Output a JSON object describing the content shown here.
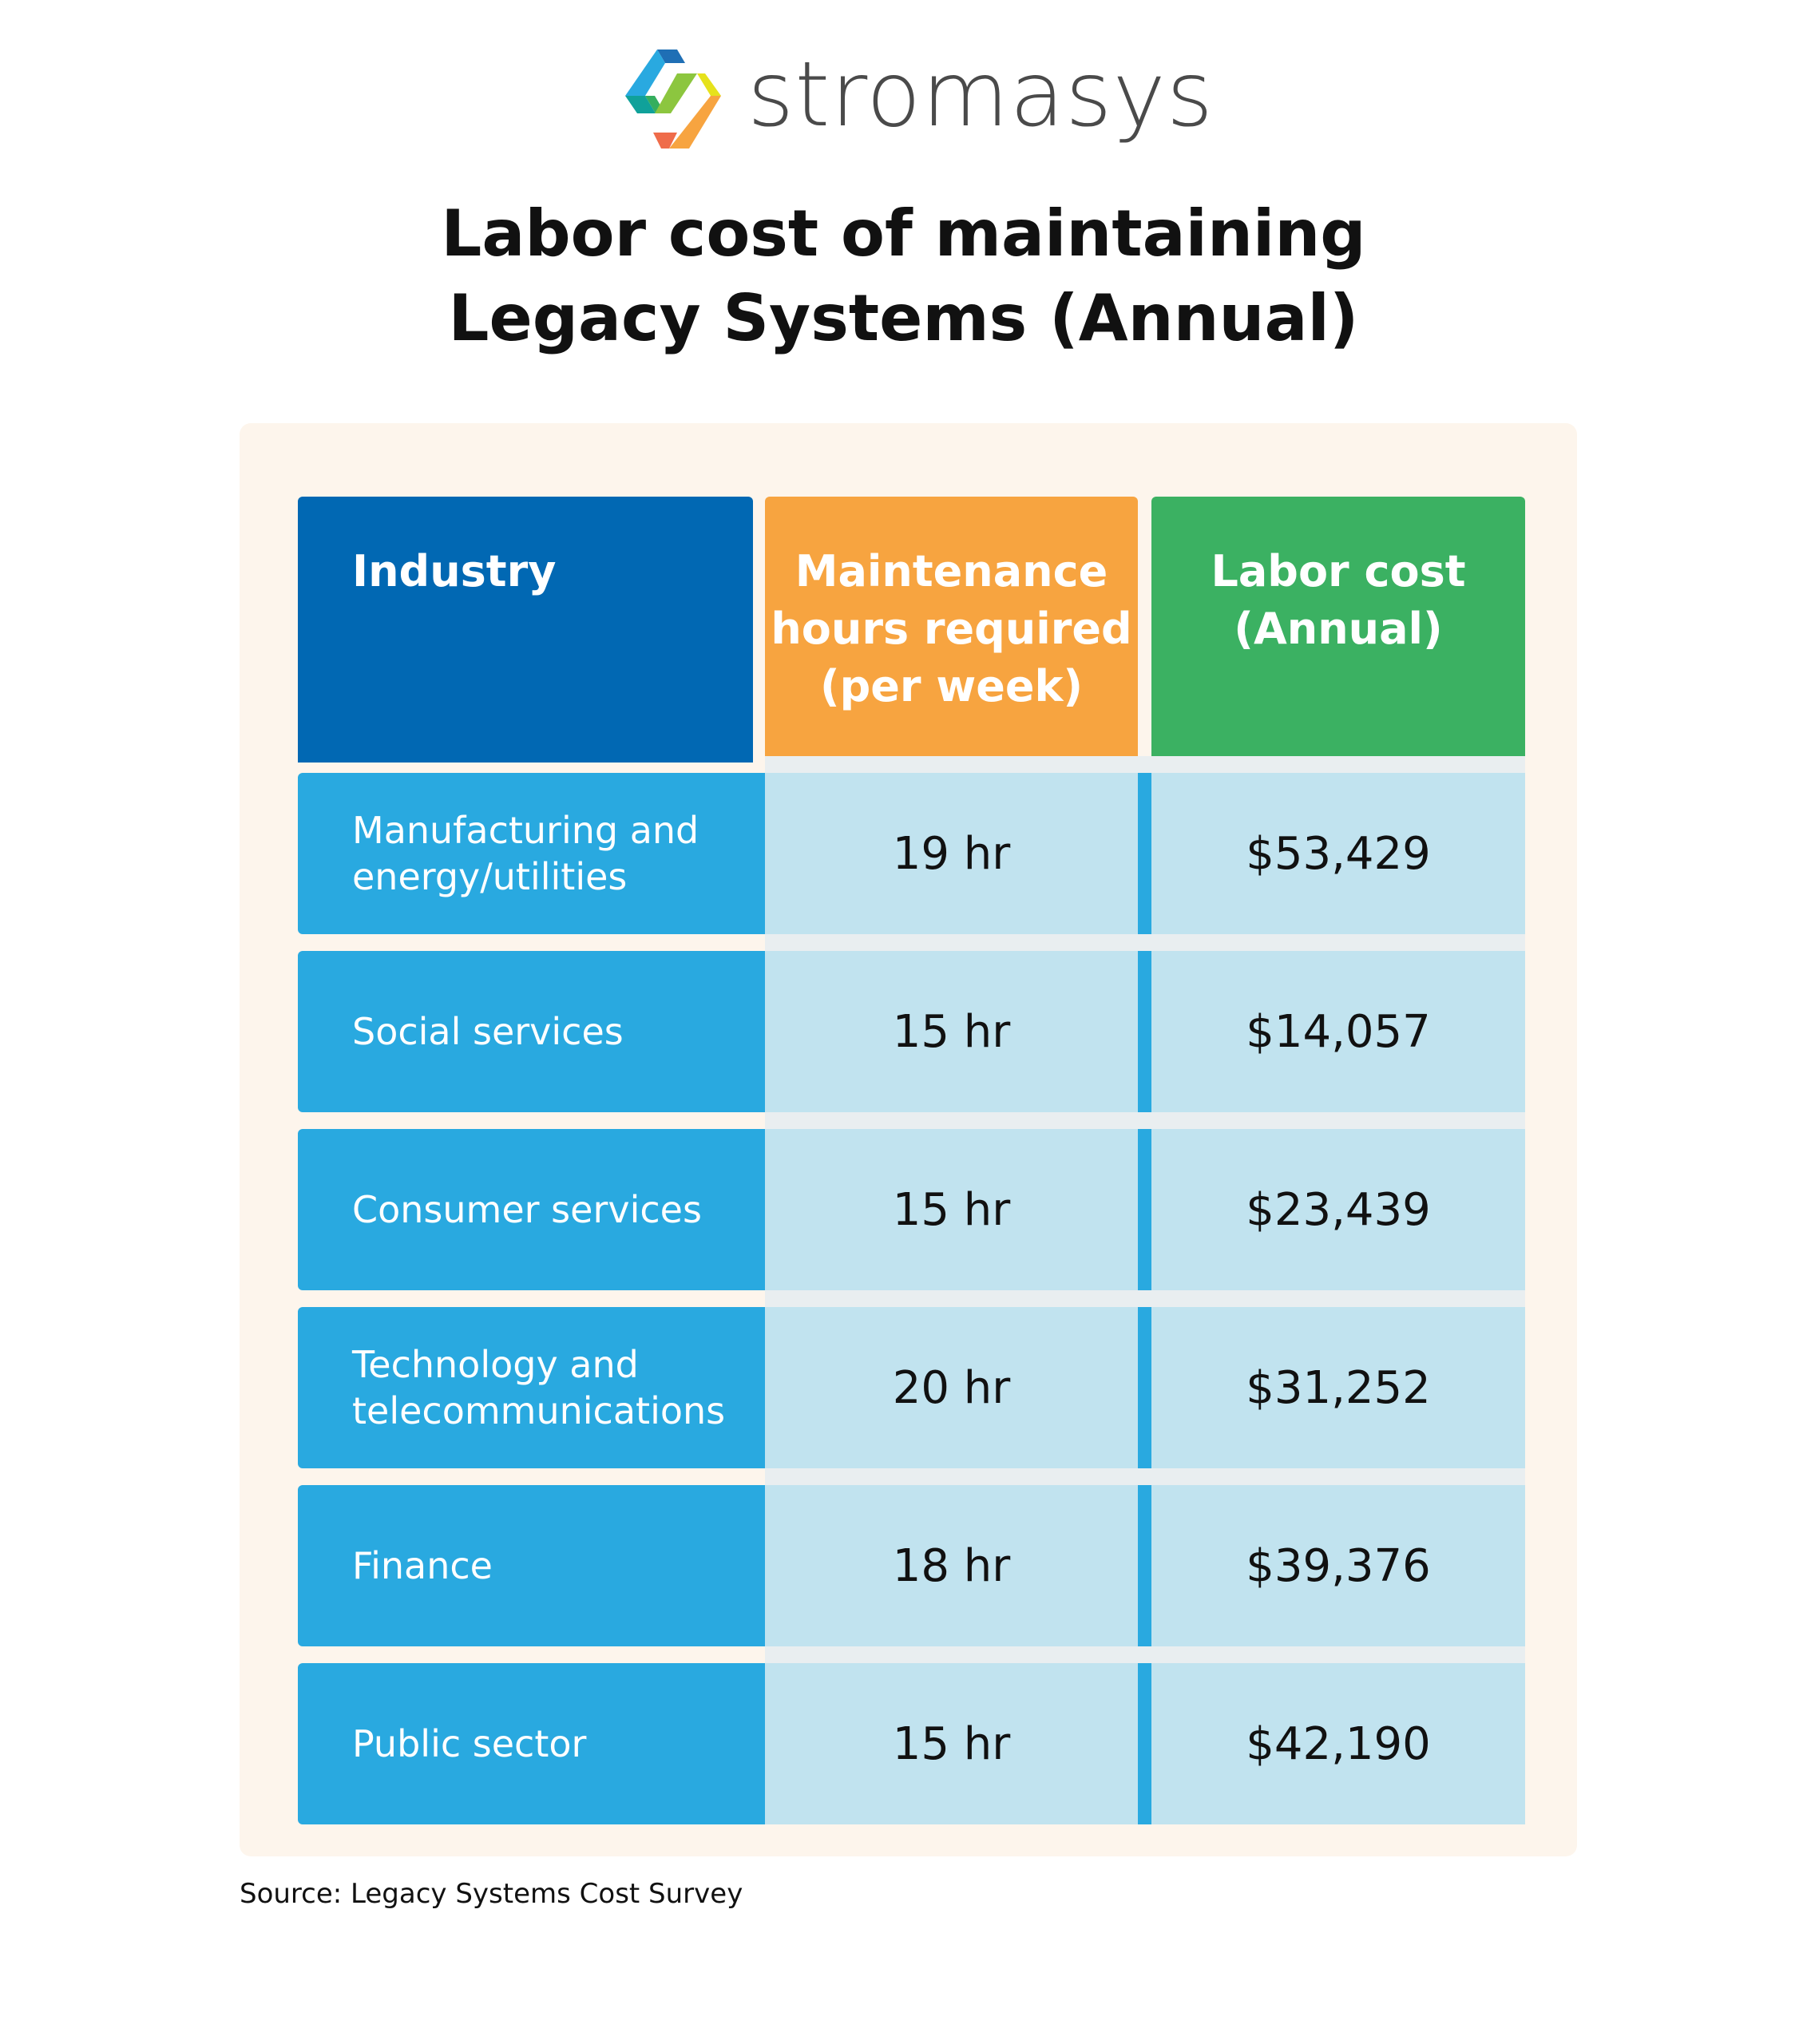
{
  "brand": {
    "name": "stromasys",
    "colors": {
      "blue": "#0168b3",
      "orange": "#f7a440",
      "green": "#3bb162",
      "light_blue": "#29a9e0"
    }
  },
  "title": {
    "line1": "Labor cost of maintaining",
    "line2": "Legacy Systems (Annual)"
  },
  "table": {
    "headers": [
      "Industry",
      "Maintenance hours required (per week)",
      "Labor cost (Annual)"
    ],
    "header_lines": {
      "industry": [
        "Industry"
      ],
      "hours": [
        "Maintenance",
        "hours required",
        "(per week)"
      ],
      "cost": [
        "Labor cost",
        "(Annual)"
      ]
    },
    "rows": [
      {
        "industry": "Manufacturing and energy/utilities",
        "hours": "19 hr",
        "cost": "$53,429"
      },
      {
        "industry": "Social services",
        "hours": "15 hr",
        "cost": "$14,057"
      },
      {
        "industry": "Consumer services",
        "hours": "15 hr",
        "cost": "$23,439"
      },
      {
        "industry": "Technology and telecommunications",
        "hours": "20 hr",
        "cost": "$31,252"
      },
      {
        "industry": "Finance",
        "hours": "18 hr",
        "cost": "$39,376"
      },
      {
        "industry": "Public sector",
        "hours": "15 hr",
        "cost": "$42,190"
      }
    ]
  },
  "source": "Source: Legacy Systems Cost Survey"
}
